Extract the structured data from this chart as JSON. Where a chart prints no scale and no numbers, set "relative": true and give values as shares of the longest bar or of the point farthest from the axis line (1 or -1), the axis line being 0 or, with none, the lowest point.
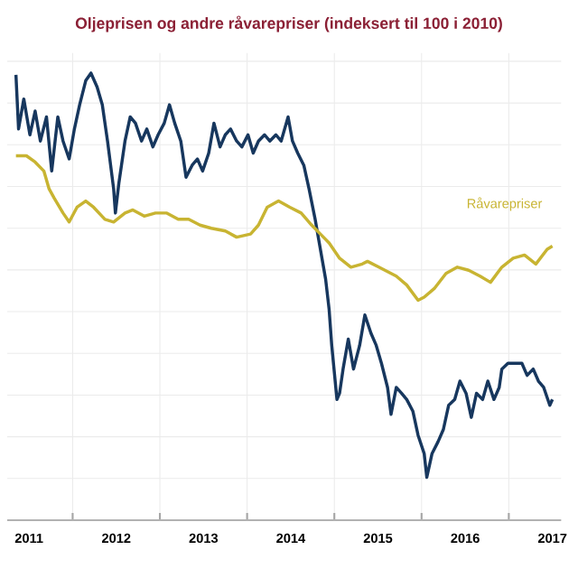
{
  "chart_data": {
    "type": "line",
    "title": "Oljeprisen og andre råvarepriser (indeksert til 100 i 2010)",
    "relative": true,
    "grid": true,
    "tick_labels": "x",
    "line_style": "solid",
    "marker": "none",
    "xlim": [
      2011.25,
      2017.6
    ],
    "xticks": [
      {
        "value": 2011.5,
        "label": "2011"
      },
      {
        "value": 2012.5,
        "label": "2012"
      },
      {
        "value": 2013.5,
        "label": "2013"
      },
      {
        "value": 2014.5,
        "label": "2014"
      },
      {
        "value": 2015.5,
        "label": "2015"
      },
      {
        "value": 2016.5,
        "label": "2016"
      },
      {
        "value": 2017.5,
        "label": "2017"
      },
      {
        "value": 2012,
        "label": null
      },
      {
        "value": 2013,
        "label": null
      },
      {
        "value": 2014,
        "label": null
      },
      {
        "value": 2015,
        "label": null
      },
      {
        "value": 2016,
        "label": null
      },
      {
        "value": 2017,
        "label": null
      }
    ],
    "series": [
      {
        "color": "#17375e",
        "x": [
          2011.35,
          2011.38,
          2011.44,
          2011.51,
          2011.57,
          2011.63,
          2011.7,
          2011.76,
          2011.83,
          2011.89,
          2011.96,
          2012.02,
          2012.08,
          2012.15,
          2012.21,
          2012.28,
          2012.34,
          2012.4,
          2012.47,
          2012.49,
          2012.53,
          2012.6,
          2012.66,
          2012.72,
          2012.79,
          2012.85,
          2012.92,
          2012.98,
          2013.05,
          2013.11,
          2013.17,
          2013.24,
          2013.3,
          2013.37,
          2013.43,
          2013.49,
          2013.56,
          2013.62,
          2013.69,
          2013.75,
          2013.81,
          2013.88,
          2013.94,
          2014.01,
          2014.07,
          2014.13,
          2014.2,
          2014.26,
          2014.33,
          2014.39,
          2014.47,
          2014.52,
          2014.58,
          2014.65,
          2014.71,
          2014.78,
          2014.84,
          2014.9,
          2014.94,
          2014.97,
          2015.03,
          2015.06,
          2015.1,
          2015.16,
          2015.22,
          2015.29,
          2015.35,
          2015.42,
          2015.48,
          2015.54,
          2015.61,
          2015.65,
          2015.71,
          2015.77,
          2015.83,
          2015.9,
          2015.96,
          2016.03,
          2016.06,
          2016.12,
          2016.19,
          2016.25,
          2016.31,
          2016.38,
          2016.44,
          2016.51,
          2016.57,
          2016.63,
          2016.7,
          2016.76,
          2016.83,
          2016.89,
          2016.92,
          2016.99,
          2017.08,
          2017.15,
          2017.21,
          2017.28,
          2017.34,
          2017.4,
          2017.47,
          2017.5
        ],
        "values": [
          0.996,
          0.875,
          0.942,
          0.862,
          0.915,
          0.848,
          0.902,
          0.781,
          0.902,
          0.848,
          0.808,
          0.875,
          0.929,
          0.983,
          1,
          0.969,
          0.929,
          0.848,
          0.741,
          0.687,
          0.754,
          0.848,
          0.902,
          0.888,
          0.848,
          0.875,
          0.835,
          0.862,
          0.888,
          0.929,
          0.888,
          0.848,
          0.767,
          0.794,
          0.808,
          0.781,
          0.821,
          0.888,
          0.835,
          0.862,
          0.875,
          0.848,
          0.835,
          0.862,
          0.821,
          0.848,
          0.862,
          0.848,
          0.862,
          0.848,
          0.902,
          0.848,
          0.821,
          0.794,
          0.741,
          0.673,
          0.606,
          0.539,
          0.472,
          0.391,
          0.27,
          0.284,
          0.338,
          0.405,
          0.338,
          0.391,
          0.459,
          0.418,
          0.391,
          0.351,
          0.297,
          0.237,
          0.297,
          0.284,
          0.27,
          0.244,
          0.19,
          0.149,
          0.096,
          0.149,
          0.176,
          0.203,
          0.257,
          0.27,
          0.311,
          0.284,
          0.23,
          0.284,
          0.27,
          0.311,
          0.27,
          0.297,
          0.338,
          0.351,
          0.351,
          0.351,
          0.324,
          0.338,
          0.311,
          0.297,
          0.257,
          0.27
        ]
      },
      {
        "name": "Råvarepriser",
        "color": "#c8b432",
        "x": [
          2011.35,
          2011.47,
          2011.57,
          2011.67,
          2011.73,
          2011.79,
          2011.89,
          2011.96,
          2012.05,
          2012.15,
          2012.24,
          2012.37,
          2012.47,
          2012.6,
          2012.69,
          2012.82,
          2012.95,
          2013.08,
          2013.21,
          2013.33,
          2013.46,
          2013.59,
          2013.75,
          2013.88,
          2014.04,
          2014.13,
          2014.23,
          2014.36,
          2014.49,
          2014.62,
          2014.74,
          2014.84,
          2014.94,
          2015.06,
          2015.19,
          2015.32,
          2015.38,
          2015.51,
          2015.71,
          2015.83,
          2015.96,
          2016.03,
          2016.15,
          2016.28,
          2016.41,
          2016.54,
          2016.67,
          2016.79,
          2016.92,
          2017.05,
          2017.18,
          2017.31,
          2017.44,
          2017.5
        ],
        "values": [
          0.815,
          0.815,
          0.801,
          0.781,
          0.741,
          0.72,
          0.687,
          0.667,
          0.7,
          0.714,
          0.7,
          0.673,
          0.667,
          0.687,
          0.694,
          0.68,
          0.687,
          0.687,
          0.673,
          0.673,
          0.66,
          0.653,
          0.647,
          0.633,
          0.64,
          0.66,
          0.7,
          0.714,
          0.7,
          0.687,
          0.66,
          0.64,
          0.62,
          0.586,
          0.566,
          0.573,
          0.579,
          0.566,
          0.546,
          0.526,
          0.492,
          0.499,
          0.519,
          0.552,
          0.566,
          0.559,
          0.546,
          0.532,
          0.566,
          0.586,
          0.593,
          0.573,
          0.606,
          0.613
        ]
      }
    ]
  }
}
